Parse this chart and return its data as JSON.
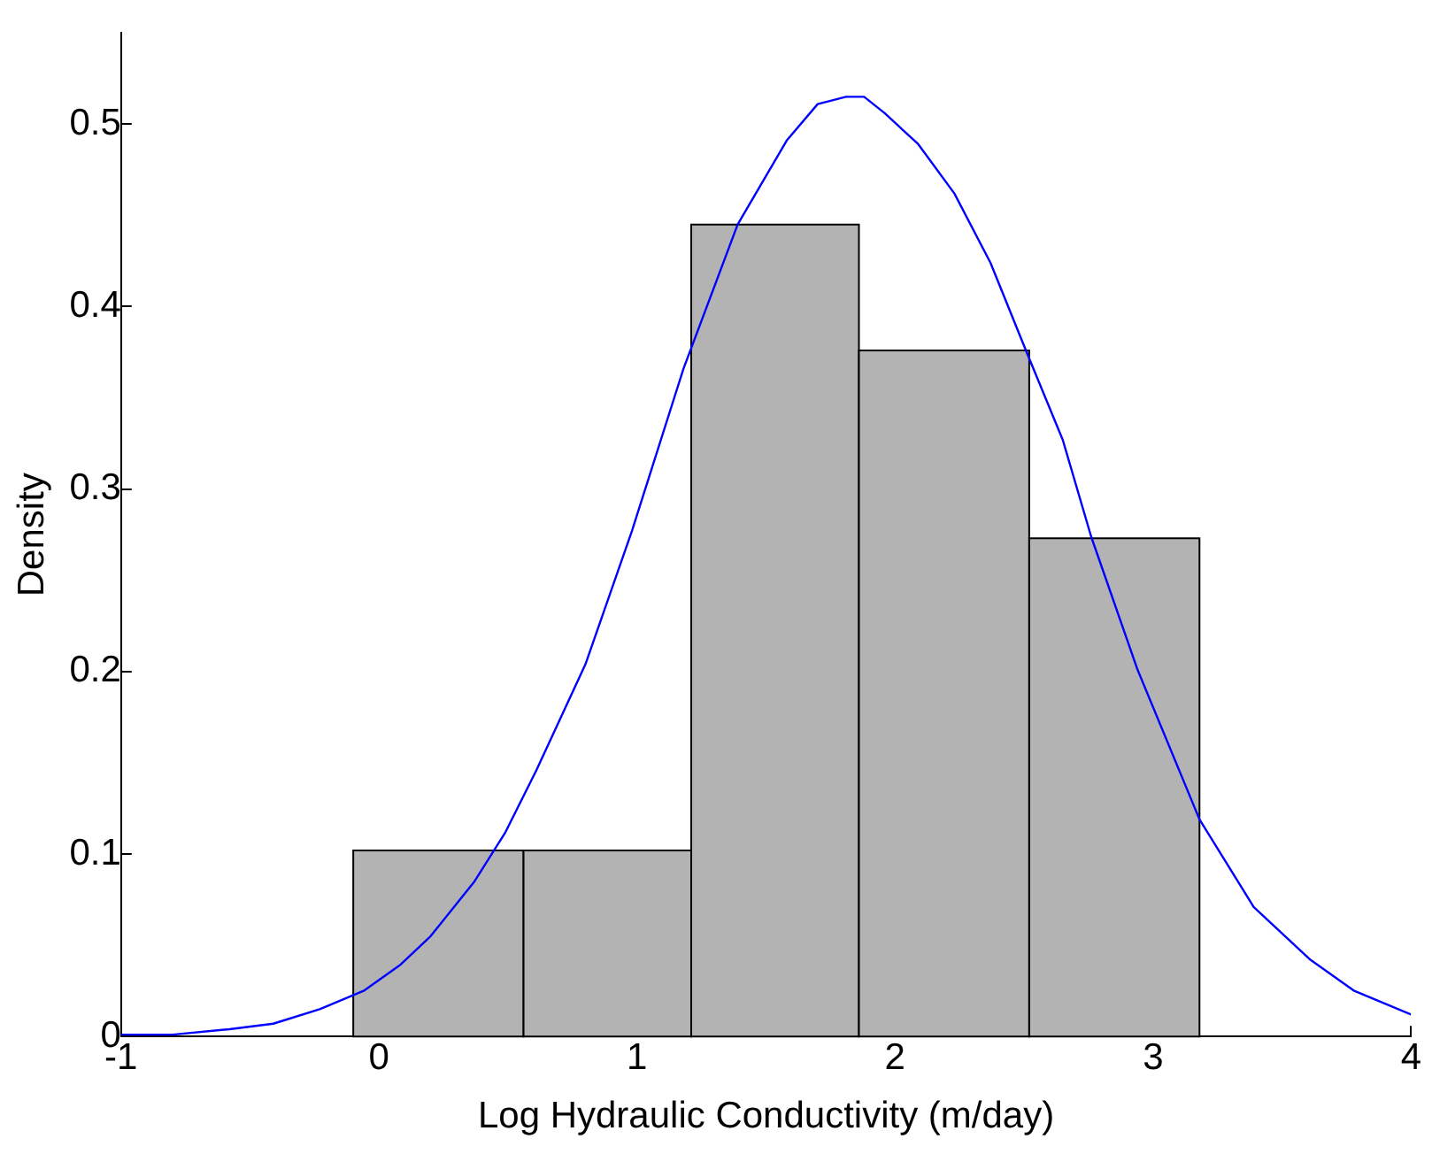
{
  "chart_data": {
    "type": "histogram",
    "xlabel": "Log Hydraulic Conductivity (m/day)",
    "ylabel": "Density",
    "xlim": [
      -1,
      4
    ],
    "xticks": [
      -1,
      0,
      1,
      2,
      3,
      4
    ],
    "ylim": [
      0,
      0.55
    ],
    "yticks": [
      0,
      0.1,
      0.2,
      0.3,
      0.4,
      0.5
    ],
    "grid": false,
    "legend": false,
    "series": [
      {
        "color": "#b3b3b3",
        "bins": [
          -0.1,
          0.56,
          1.21,
          1.86,
          2.52,
          3.18
        ],
        "values": [
          0.102,
          0.102,
          0.445,
          0.376,
          0.273
        ]
      },
      {
        "type": "line",
        "color": "#0000ff",
        "x": [
          -1,
          -0.8,
          -0.58,
          -0.41,
          -0.23,
          -0.06,
          0.08,
          0.2,
          0.37,
          0.49,
          0.61,
          0.8,
          0.98,
          1.18,
          1.39,
          1.58,
          1.7,
          1.81,
          1.88,
          1.96,
          2.09,
          2.23,
          2.37,
          2.51,
          2.65,
          2.76,
          2.94,
          3.18,
          3.39,
          3.61,
          3.78,
          4
        ],
        "values": [
          0.001,
          0.001,
          0.004,
          0.007,
          0.015,
          0.025,
          0.039,
          0.055,
          0.085,
          0.112,
          0.146,
          0.204,
          0.277,
          0.366,
          0.445,
          0.491,
          0.511,
          0.515,
          0.515,
          0.506,
          0.489,
          0.462,
          0.424,
          0.375,
          0.327,
          0.274,
          0.201,
          0.119,
          0.071,
          0.042,
          0.025,
          0.012
        ]
      }
    ]
  }
}
